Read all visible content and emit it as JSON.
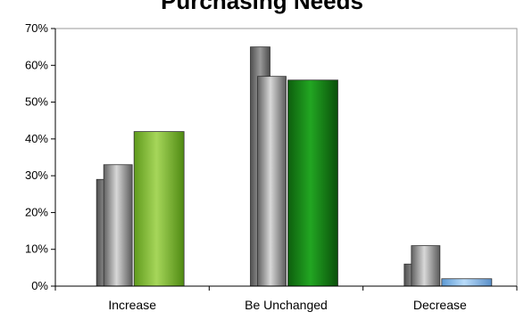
{
  "chart_data": {
    "type": "bar",
    "title": "Purchasing Needs",
    "categories": [
      "Increase",
      "Be Unchanged",
      "Decrease"
    ],
    "series": [
      {
        "values": [
          29,
          65,
          6
        ],
        "color": "#7a7a7a"
      },
      {
        "values": [
          33,
          57,
          11
        ],
        "color": "#8a8a8a"
      },
      {
        "values": [
          42,
          56,
          2
        ],
        "color_by_category": [
          "#8dc63f",
          "#1f8f1f",
          "#8fc4f0"
        ]
      }
    ],
    "y_ticks": [
      "0%",
      "10%",
      "20%",
      "30%",
      "40%",
      "50%",
      "60%",
      "70%"
    ],
    "ylim": [
      0,
      70
    ],
    "y_unit": "%",
    "grid": false,
    "legend": "none"
  }
}
